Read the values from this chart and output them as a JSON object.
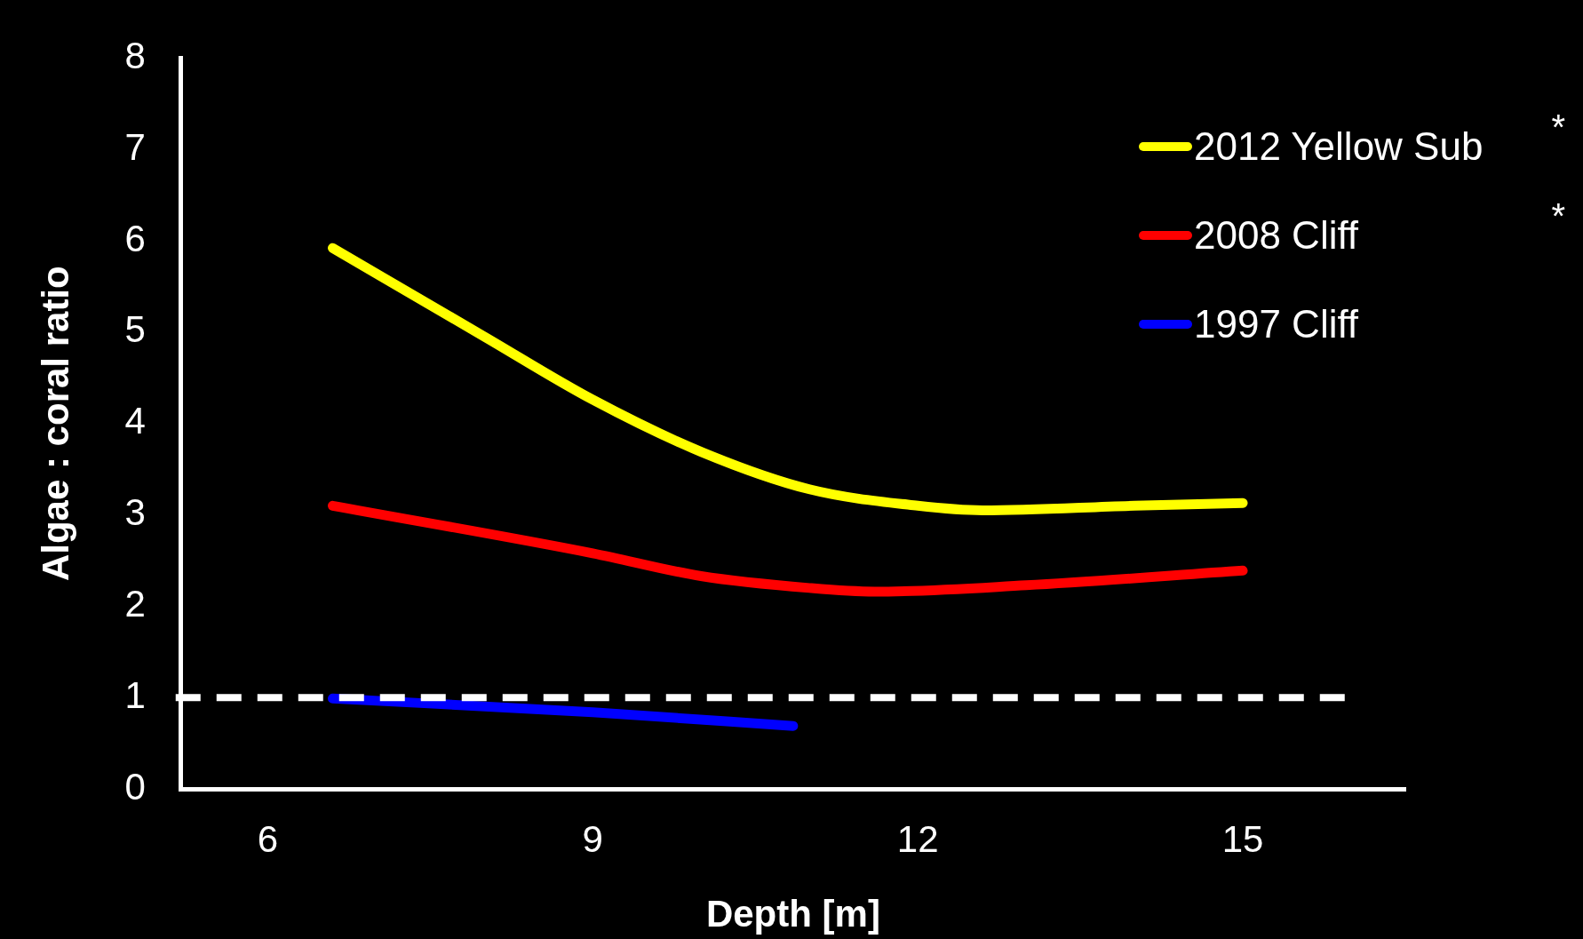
{
  "chart_data": {
    "type": "line",
    "xlabel": "Depth [m]",
    "ylabel": "Algae : coral ratio",
    "xlim": [
      5.2,
      16.5
    ],
    "xticks": [
      6,
      9,
      12,
      15
    ],
    "ylim": [
      0,
      8
    ],
    "yticks": [
      0,
      1,
      2,
      3,
      4,
      5,
      6,
      7,
      8
    ],
    "grid": false,
    "legend": "top right",
    "marker": "none",
    "line_style": "solid",
    "series": [
      {
        "name": "2012 Yellow Sub",
        "color": "#ffff00",
        "x": [
          6.6,
          8,
          9,
          10,
          11,
          12,
          12.6,
          14,
          15
        ],
        "values": [
          5.92,
          4.95,
          4.26,
          3.69,
          3.28,
          3.1,
          3.05,
          3.1,
          3.13
        ]
      },
      {
        "name": "2008 Cliff",
        "color": "#ff0000",
        "x": [
          6.6,
          9,
          10,
          11,
          11.6,
          13,
          15
        ],
        "values": [
          3.1,
          2.58,
          2.33,
          2.2,
          2.16,
          2.23,
          2.39
        ]
      },
      {
        "name": "1997 Cliff",
        "color": "#0000ff",
        "x": [
          6.6,
          9,
          10.85
        ],
        "values": [
          0.99,
          0.84,
          0.69
        ]
      }
    ],
    "ref_lines": [
      {
        "axis": "y",
        "value": 1,
        "color": "#ffffff",
        "line_style": "dashed"
      }
    ],
    "annotations": [
      "*",
      "*"
    ]
  }
}
